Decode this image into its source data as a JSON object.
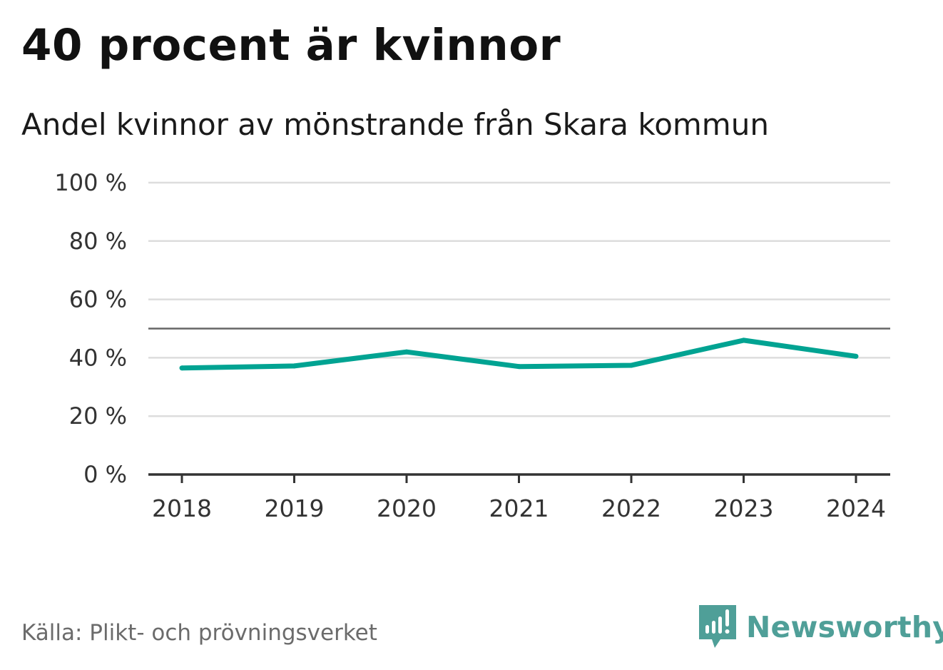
{
  "title": "40 procent är kvinnor",
  "subtitle": "Andel kvinnor av mönstrande från Skara kommun",
  "source": "Källa: Plikt- och prövningsverket",
  "brand": {
    "name": "Newsworthy",
    "icon": "newsworthy-logo-icon",
    "color": "#4f9f98"
  },
  "chart_data": {
    "type": "line",
    "title": "40 procent är kvinnor",
    "subtitle": "Andel kvinnor av mönstrande från Skara kommun",
    "xlabel": "",
    "ylabel": "",
    "categories": [
      "2018",
      "2019",
      "2020",
      "2021",
      "2022",
      "2023",
      "2024"
    ],
    "series": [
      {
        "values": [
          36.5,
          37.2,
          42.0,
          37.0,
          37.4,
          46.0,
          40.5
        ],
        "color": "#00a392"
      }
    ],
    "ylim": [
      0,
      100
    ],
    "yticks": [
      0,
      20,
      40,
      60,
      80,
      100
    ],
    "ytick_labels": [
      "0 %",
      "20 %",
      "40 %",
      "60 %",
      "80 %",
      "100 %"
    ],
    "reference_line": 50,
    "grid": true,
    "colors": {
      "grid": "#dddddd",
      "axis": "#333333",
      "reference": "#666666"
    }
  }
}
